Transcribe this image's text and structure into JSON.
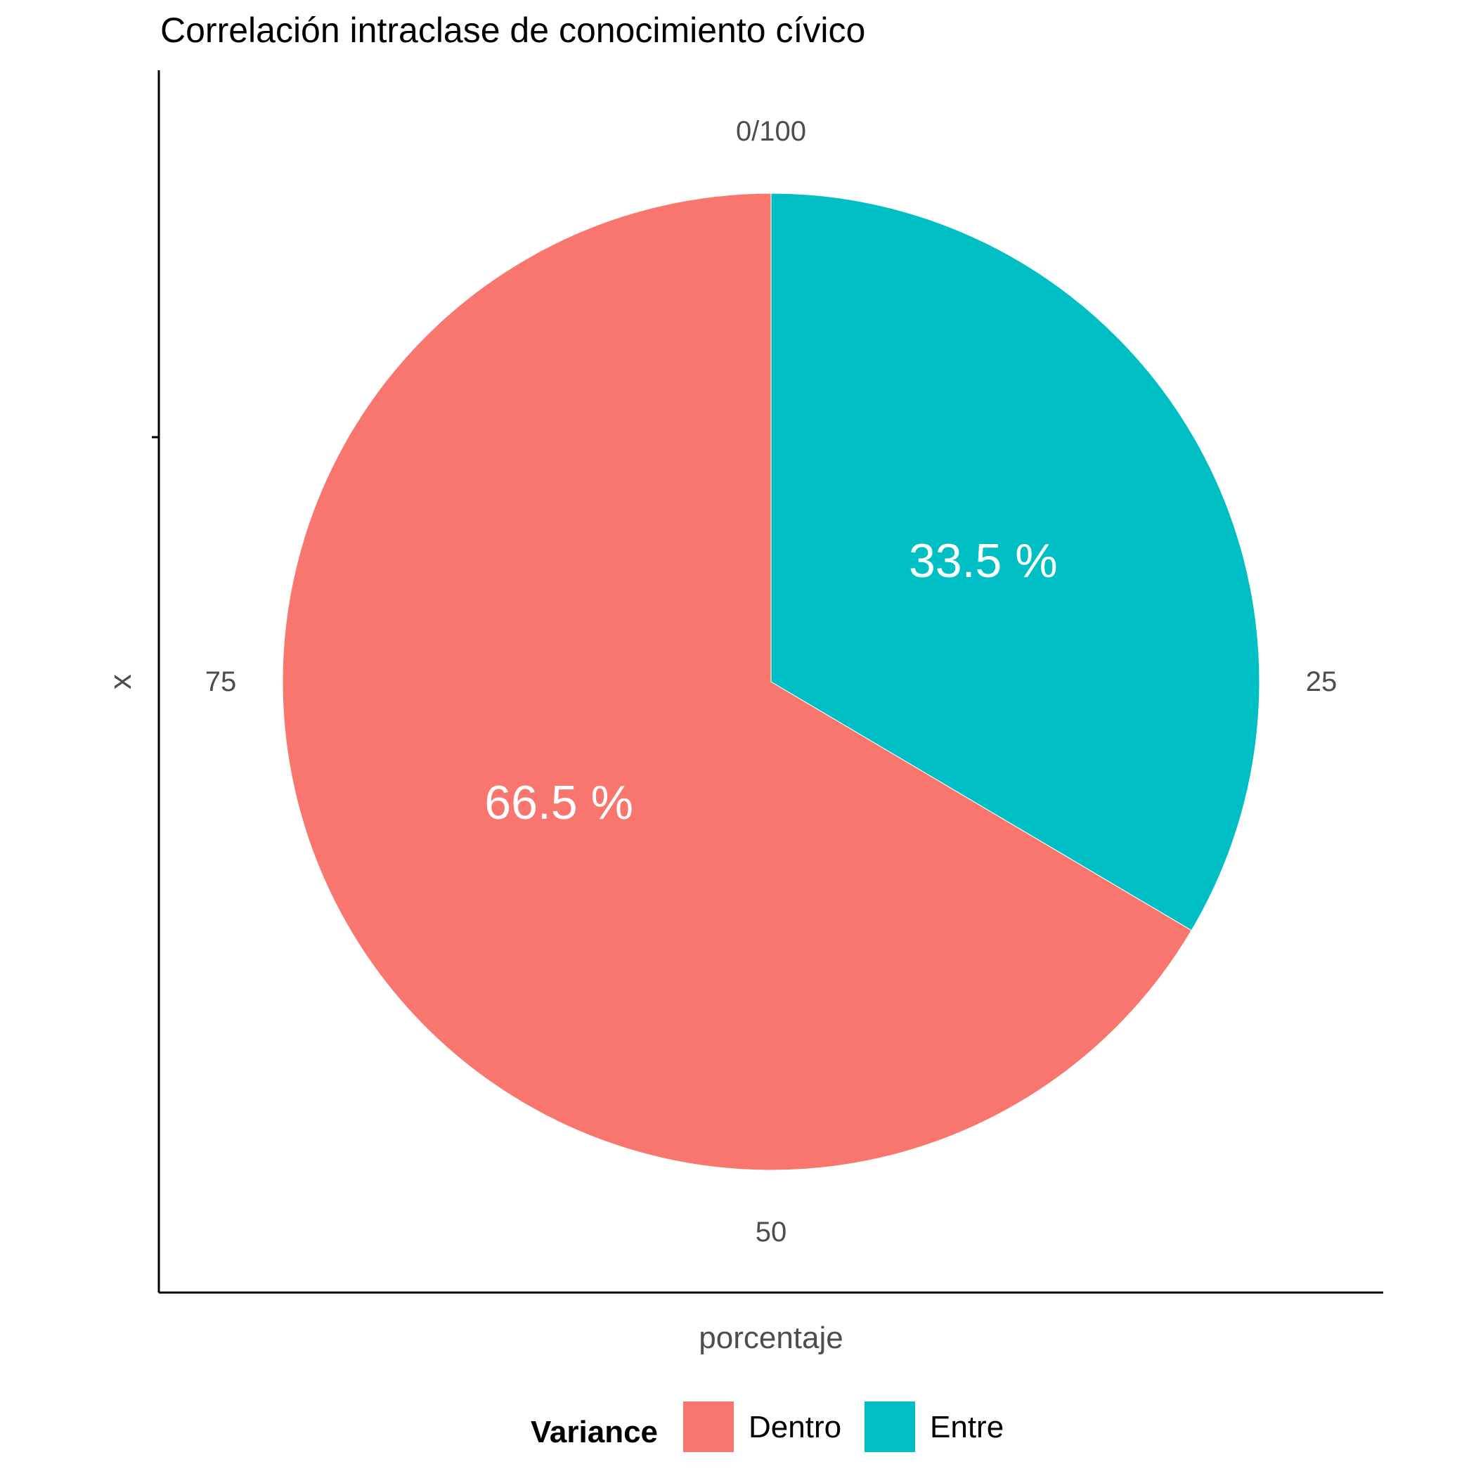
{
  "chart_data": {
    "type": "pie",
    "title": "Correlación intraclase de conocimiento cívico",
    "xlabel": "porcentaje",
    "ylabel": "x",
    "angle_ticks": [
      "0/100",
      "25",
      "50",
      "75"
    ],
    "legend": {
      "title": "Variance",
      "position": "bottom"
    },
    "slices": [
      {
        "name": "Entre",
        "value": 33.5,
        "label": "33.5 %",
        "color": "#00BFC4"
      },
      {
        "name": "Dentro",
        "value": 66.5,
        "label": "66.5 %",
        "color": "#F8766D"
      }
    ],
    "legend_order": [
      "Dentro",
      "Entre"
    ]
  }
}
